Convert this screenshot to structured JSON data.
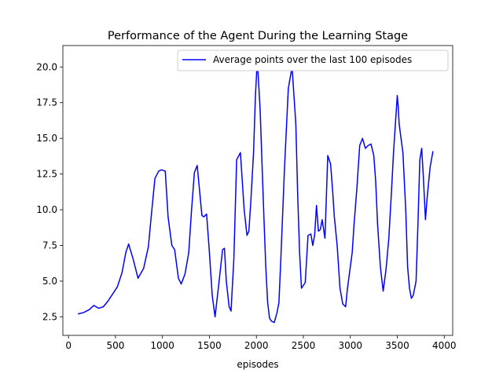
{
  "chart_data": {
    "type": "line",
    "title": "Performance of the Agent During the Learning Stage",
    "xlabel": "episodes",
    "ylabel": "",
    "xlim": [
      -60,
      4090
    ],
    "ylim": [
      1.2,
      21.5
    ],
    "xticks": [
      0,
      500,
      1000,
      1500,
      2000,
      2500,
      3000,
      3500,
      4000
    ],
    "yticks": [
      2.5,
      5.0,
      7.5,
      10.0,
      12.5,
      15.0,
      17.5,
      20.0
    ],
    "grid": false,
    "legend_position": "top-right",
    "line_color": "#0000ff",
    "series": [
      {
        "name": "Average points over the last 100 episodes",
        "color": "#0000ff",
        "x": [
          100,
          160,
          220,
          270,
          320,
          370,
          420,
          470,
          520,
          570,
          610,
          640,
          690,
          740,
          800,
          850,
          880,
          920,
          960,
          990,
          1030,
          1060,
          1100,
          1130,
          1170,
          1200,
          1240,
          1280,
          1310,
          1340,
          1370,
          1400,
          1420,
          1440,
          1470,
          1500,
          1530,
          1560,
          1600,
          1640,
          1660,
          1680,
          1710,
          1730,
          1760,
          1790,
          1830,
          1850,
          1870,
          1900,
          1920,
          1940,
          1970,
          1990,
          2010,
          2040,
          2080,
          2100,
          2120,
          2140,
          2160,
          2190,
          2220,
          2240,
          2260,
          2300,
          2340,
          2380,
          2420,
          2440,
          2460,
          2480,
          2520,
          2550,
          2580,
          2600,
          2620,
          2640,
          2660,
          2680,
          2700,
          2730,
          2760,
          2790,
          2810,
          2830,
          2860,
          2890,
          2920,
          2950,
          2970,
          3000,
          3020,
          3040,
          3070,
          3100,
          3130,
          3160,
          3190,
          3220,
          3250,
          3270,
          3290,
          3320,
          3350,
          3380,
          3410,
          3440,
          3460,
          3480,
          3500,
          3510,
          3520,
          3560,
          3590,
          3610,
          3630,
          3650,
          3670,
          3700,
          3720,
          3740,
          3760,
          3780,
          3800,
          3820,
          3850,
          3880
        ],
        "y": [
          2.7,
          2.8,
          3.0,
          3.3,
          3.1,
          3.2,
          3.6,
          4.1,
          4.6,
          5.6,
          7.0,
          7.6,
          6.5,
          5.2,
          5.9,
          7.4,
          9.5,
          12.2,
          12.7,
          12.8,
          12.7,
          9.5,
          7.5,
          7.2,
          5.2,
          4.8,
          5.5,
          7.0,
          10.0,
          12.6,
          13.1,
          11.0,
          9.6,
          9.5,
          9.7,
          7.0,
          4.0,
          2.5,
          4.8,
          7.2,
          7.3,
          5.0,
          3.2,
          2.9,
          6.5,
          13.5,
          14.0,
          12.0,
          10.0,
          8.2,
          8.5,
          10.5,
          14.0,
          18.0,
          20.5,
          17.0,
          9.5,
          6.0,
          3.5,
          2.4,
          2.2,
          2.1,
          2.8,
          3.5,
          6.5,
          13.0,
          18.5,
          20.0,
          16.0,
          11.0,
          7.0,
          4.5,
          4.9,
          8.2,
          8.3,
          7.5,
          8.2,
          10.3,
          8.5,
          8.6,
          9.3,
          8.0,
          13.8,
          13.2,
          11.5,
          9.5,
          7.5,
          4.5,
          3.4,
          3.2,
          4.5,
          6.0,
          7.0,
          9.0,
          11.5,
          14.5,
          15.0,
          14.3,
          14.5,
          14.6,
          13.8,
          12.0,
          9.0,
          6.0,
          4.3,
          5.8,
          8.0,
          11.5,
          14.0,
          16.0,
          18.0,
          17.2,
          16.0,
          14.0,
          10.0,
          6.0,
          4.5,
          3.8,
          4.0,
          5.0,
          9.0,
          13.5,
          14.3,
          12.0,
          9.3,
          11.0,
          13.0,
          14.1
        ]
      }
    ]
  }
}
